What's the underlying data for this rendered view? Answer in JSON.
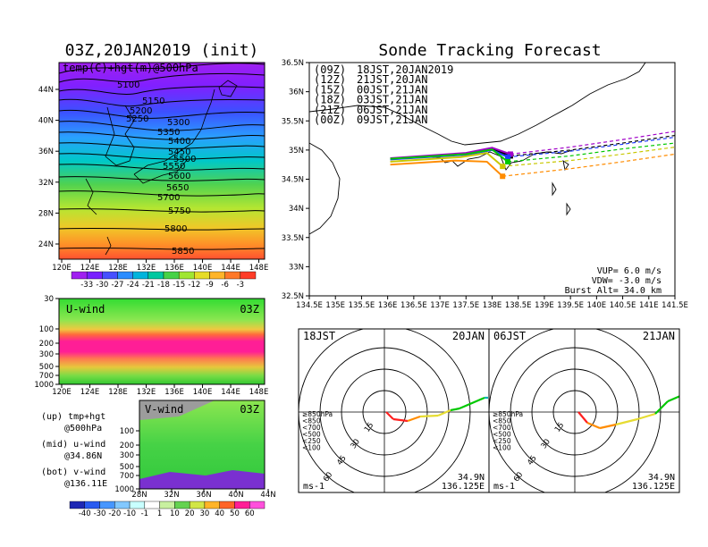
{
  "left": {
    "title": "03Z,20JAN2019 (init)",
    "map_label": "temp(C)+hgt(m)@500hPa",
    "lon_ticks": [
      "120E",
      "124E",
      "128E",
      "132E",
      "136E",
      "140E",
      "144E",
      "148E"
    ],
    "lat_ticks": [
      "44N",
      "40N",
      "36N",
      "32N",
      "28N",
      "24N"
    ],
    "colorbar_temp": [
      "-33",
      "-30",
      "-27",
      "-24",
      "-21",
      "-18",
      "-15",
      "-12",
      "-9",
      "-6",
      "-3"
    ],
    "contour_labels": [
      "5100",
      "5150",
      "5200",
      "5250",
      "5300",
      "5350",
      "5400",
      "5450",
      "5500",
      "5550",
      "5600",
      "5650",
      "5700",
      "5750",
      "5800",
      "5850"
    ],
    "uwind": {
      "label": "U-wind",
      "time": "03Z",
      "p_ticks": [
        "30",
        "100",
        "200",
        "300",
        "500",
        "700",
        "1000"
      ],
      "lon_ticks": [
        "120E",
        "124E",
        "128E",
        "132E",
        "136E",
        "140E",
        "144E",
        "148E"
      ]
    },
    "vwind": {
      "label": "V-wind",
      "time": "03Z",
      "p_ticks": [
        "100",
        "200",
        "300",
        "500",
        "700",
        "1000"
      ],
      "lat_ticks": [
        "28N",
        "32N",
        "36N",
        "40N",
        "44N"
      ]
    },
    "colorbar_wind": [
      "-40",
      "-30",
      "-20",
      "-10",
      "-1",
      "1",
      "10",
      "20",
      "30",
      "40",
      "50",
      "60"
    ],
    "legend": [
      [
        "(up) tmp+hgt",
        "@500hPa"
      ],
      [
        "(mid) u-wind",
        "@34.86N"
      ],
      [
        "(bot) v-wind",
        "@136.11E"
      ]
    ]
  },
  "chart_data": {
    "type": "line",
    "title": "Sonde Tracking Forecast",
    "lat_ticks": [
      "36.5N",
      "36N",
      "35.5N",
      "35N",
      "34.5N",
      "34N",
      "33.5N",
      "33N",
      "32.5N"
    ],
    "lon_ticks": [
      "134.5E",
      "135E",
      "135.5E",
      "136E",
      "136.5E",
      "137E",
      "137.5E",
      "138E",
      "138.5E",
      "139E",
      "139.5E",
      "140E",
      "140.5E",
      "141E",
      "141.5E"
    ],
    "xlim": [
      134.5,
      141.5
    ],
    "ylim": [
      32.5,
      36.5
    ],
    "series": [
      {
        "name": "(09Z)",
        "label": "18JST,20JAN2019",
        "color": "#000000",
        "x": [
          136.05,
          137.5,
          138.0,
          138.35,
          139.5,
          140.5,
          141.5
        ],
        "y": [
          34.85,
          34.93,
          35.02,
          34.9,
          35.0,
          35.12,
          35.25
        ]
      },
      {
        "name": "(12Z)",
        "label": "21JST,20JAN",
        "color": "#a000c8",
        "x": [
          136.05,
          137.5,
          138.0,
          138.35,
          139.5,
          140.5,
          141.5
        ],
        "y": [
          34.86,
          34.95,
          35.04,
          34.93,
          35.05,
          35.18,
          35.32
        ]
      },
      {
        "name": "(15Z)",
        "label": "00JST,21JAN",
        "color": "#1e3cff",
        "x": [
          136.05,
          137.5,
          138.0,
          138.3,
          139.5,
          140.5,
          141.5
        ],
        "y": [
          34.84,
          34.92,
          35.0,
          34.88,
          34.98,
          35.1,
          35.22
        ]
      },
      {
        "name": "(18Z)",
        "label": "03JST,21JAN",
        "color": "#00c800",
        "x": [
          136.05,
          137.5,
          138.0,
          138.3,
          139.5,
          140.5,
          141.5
        ],
        "y": [
          34.85,
          34.93,
          35.01,
          34.8,
          34.9,
          35.02,
          35.12
        ]
      },
      {
        "name": "(21Z)",
        "label": "06JST,21JAN",
        "color": "#c8c800",
        "x": [
          136.05,
          137.4,
          137.9,
          138.2,
          139.5,
          140.5,
          141.5
        ],
        "y": [
          34.8,
          34.88,
          34.95,
          34.72,
          34.82,
          34.93,
          35.05
        ]
      },
      {
        "name": "(00Z)",
        "label": "09JST,21JAN",
        "color": "#ff8c00",
        "x": [
          136.05,
          137.3,
          137.9,
          138.2,
          139.5,
          140.5,
          141.5
        ],
        "y": [
          34.75,
          34.82,
          34.8,
          34.55,
          34.68,
          34.8,
          34.93
        ]
      }
    ],
    "info": [
      "VUP=  6.0 m/s",
      "VDW= -3.0 m/s",
      "Burst Alt= 34.0 km"
    ]
  },
  "hodographs": [
    {
      "time": "18JST",
      "date": "20JAN",
      "lat": "34.9N",
      "lon": "136.125E",
      "unit": "ms-1",
      "rings": [
        "15",
        "30",
        "45",
        "60"
      ],
      "levels": [
        "≥850hPa",
        "<850",
        "<700",
        "<500",
        "<250",
        "<100"
      ]
    },
    {
      "time": "06JST",
      "date": "21JAN",
      "lat": "34.9N",
      "lon": "136.125E",
      "unit": "ms-1",
      "rings": [
        "15",
        "30",
        "45",
        "60"
      ],
      "levels": [
        "≥850hPa",
        "<850",
        "<700",
        "<500",
        "<250",
        "<100"
      ]
    }
  ],
  "colors": {
    "levels": [
      "#ff2020",
      "#ff8c00",
      "#e6dc32",
      "#00c800",
      "#00b4b4",
      "#1e3cff"
    ]
  }
}
